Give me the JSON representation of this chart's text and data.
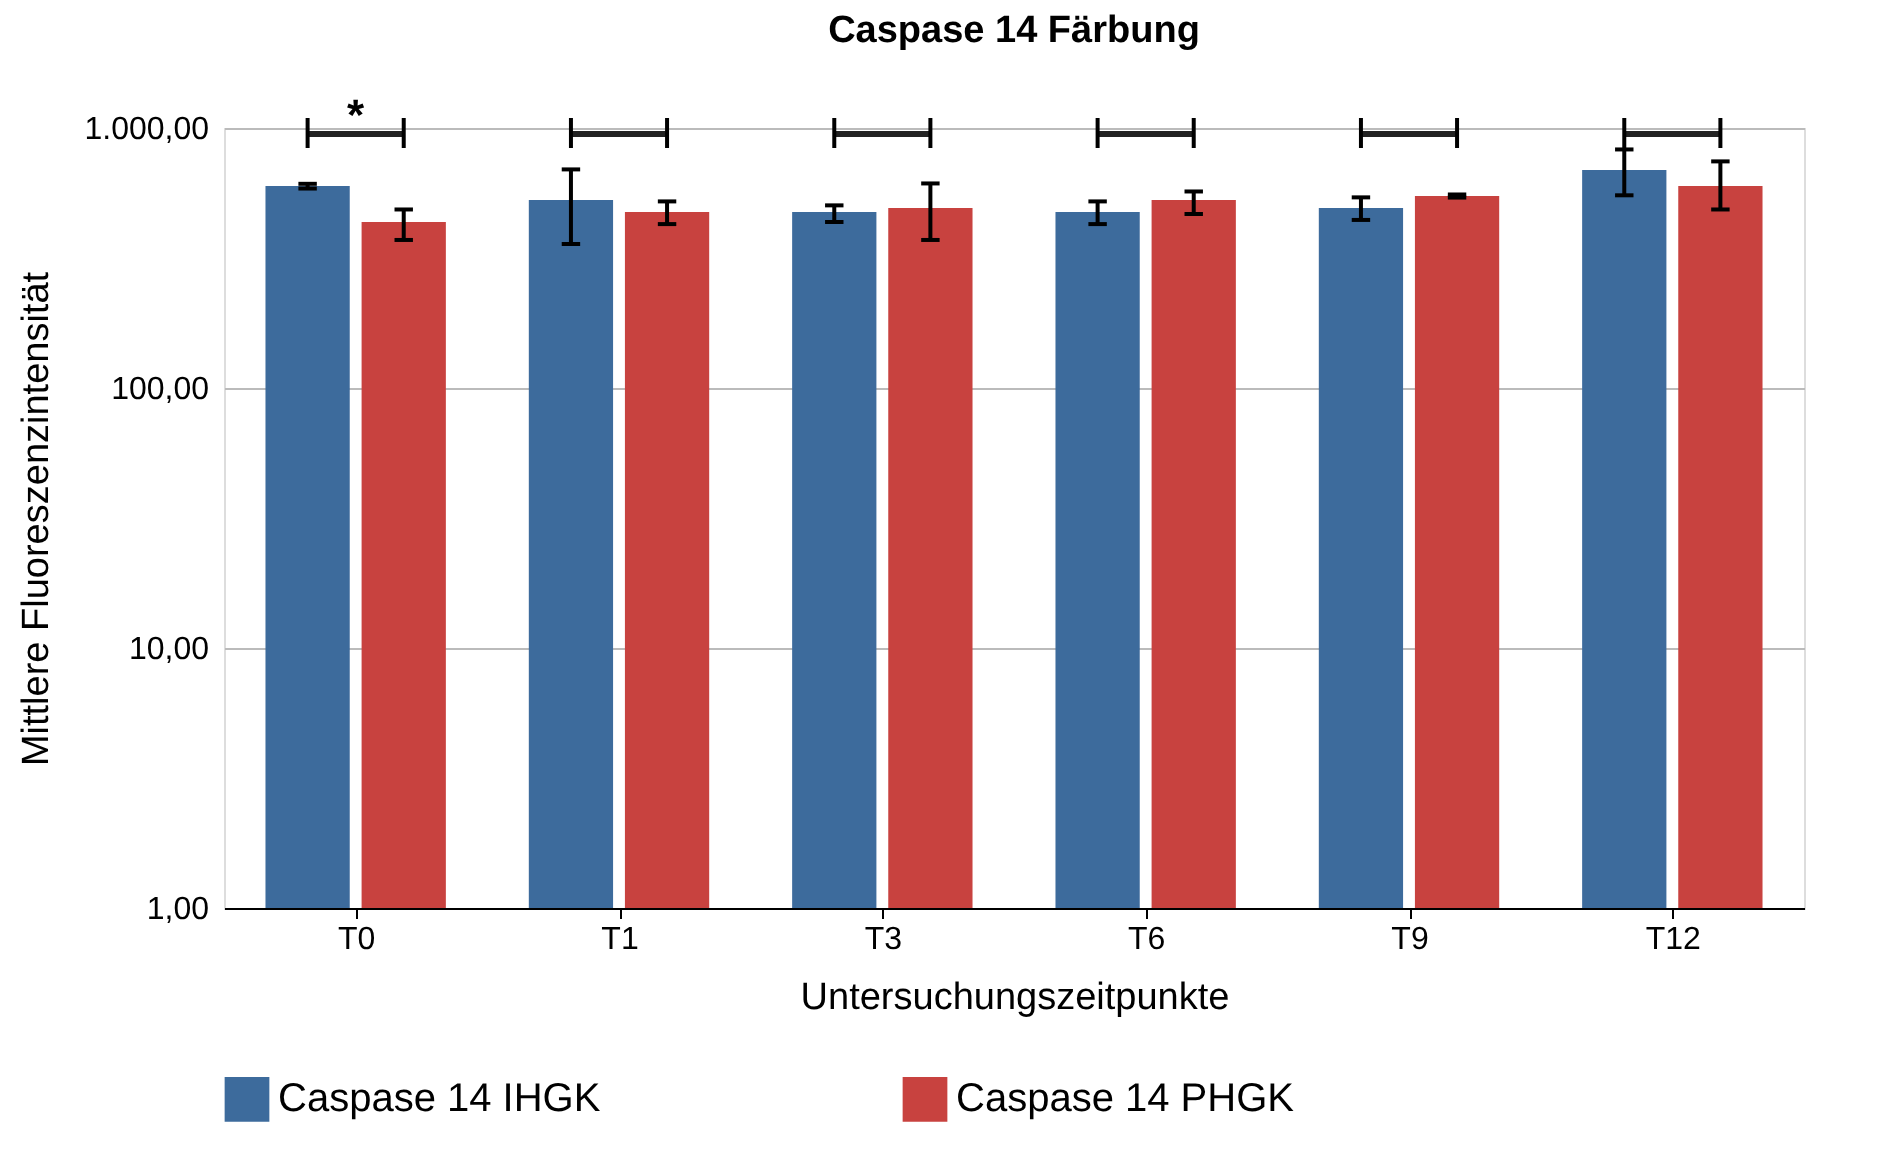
{
  "chart_data": {
    "type": "bar",
    "title": "Caspase 14 Färbung",
    "xlabel": "Untersuchungszeitpunkte",
    "ylabel": "Mittlere Fluoreszenzintensität",
    "categories": [
      "T0",
      "T1",
      "T3",
      "T6",
      "T9",
      "T12"
    ],
    "series": [
      {
        "name": "Caspase 14 IHGK",
        "color": "#3d6b9c",
        "values": [
          598,
          529,
          475,
          475,
          492,
          689
        ],
        "errors": [
          [
            585,
            610
          ],
          [
            358,
            693
          ],
          [
            435,
            504
          ],
          [
            427,
            522
          ],
          [
            443,
            541
          ],
          [
            551,
            827
          ]
        ]
      },
      {
        "name": "Caspase 14 PHGK",
        "color": "#c8423f",
        "values": [
          435,
          475,
          492,
          529,
          547,
          598
        ],
        "errors": [
          [
            371,
            486
          ],
          [
            427,
            522
          ],
          [
            371,
            612
          ],
          [
            467,
            570
          ],
          [
            540,
            555
          ],
          [
            486,
            744
          ]
        ]
      }
    ],
    "log": "y",
    "ylim": [
      1,
      1000
    ],
    "yticks": [
      {
        "value": 1,
        "label": "1,00"
      },
      {
        "value": 10,
        "label": "10,00"
      },
      {
        "value": 100,
        "label": "100,00"
      },
      {
        "value": 1000,
        "label": "1.000,00"
      }
    ],
    "grid": "y",
    "legend": "bottom",
    "annotations": [
      "*"
    ]
  }
}
